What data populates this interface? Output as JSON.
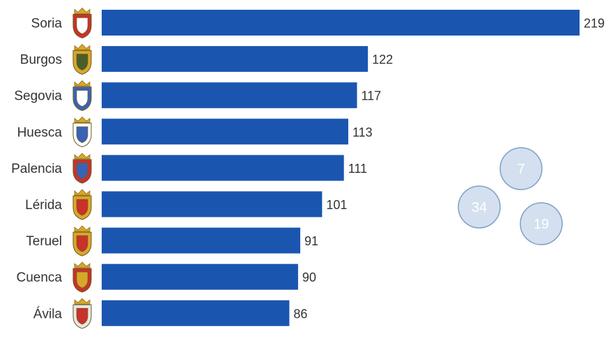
{
  "chart_data": {
    "type": "bar",
    "orientation": "horizontal",
    "categories": [
      "Soria",
      "Burgos",
      "Segovia",
      "Huesca",
      "Palencia",
      "Lérida",
      "Teruel",
      "Cuenca",
      "Ávila"
    ],
    "values": [
      219,
      122,
      117,
      113,
      111,
      101,
      91,
      90,
      86
    ],
    "xlim": [
      0,
      219
    ],
    "grid": false,
    "title": "",
    "xlabel": "",
    "ylabel": "",
    "bar_color": "#1a56b0",
    "icons": [
      "soria-coat-of-arms-icon",
      "burgos-coat-of-arms-icon",
      "segovia-coat-of-arms-icon",
      "huesca-coat-of-arms-icon",
      "palencia-coat-of-arms-icon",
      "lerida-coat-of-arms-icon",
      "teruel-coat-of-arms-icon",
      "cuenca-coat-of-arms-icon",
      "avila-coat-of-arms-icon"
    ]
  },
  "bubbles": [
    {
      "label": "7"
    },
    {
      "label": "34"
    },
    {
      "label": "19"
    }
  ],
  "colors": {
    "bar": "#1a56b0",
    "bubble_fill": "#c5d6ea",
    "bubble_stroke": "#7f9fc6",
    "crest_gold": "#d8a72a",
    "crest_red": "#c8322a",
    "crest_blue": "#3a63b5"
  }
}
